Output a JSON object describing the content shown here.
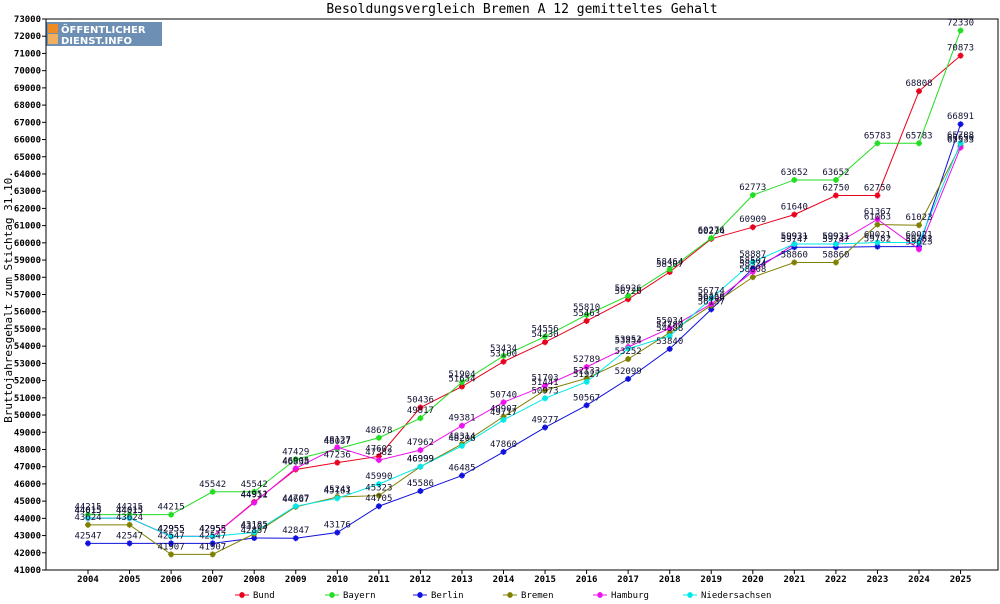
{
  "chart_data": {
    "type": "line",
    "title": "Besoldungsvergleich Bremen A 12 gemitteltes Gehalt",
    "ylabel": "Bruttojahresgehalt zum Stichtag 31.10.",
    "xlabel": "",
    "ylim": [
      41000,
      73000
    ],
    "ytick_step": 1000,
    "grid": false,
    "legend_position": "bottom",
    "logo": {
      "line1": "ÖFFENTLICHER",
      "line2": "DIENST.INFO"
    },
    "categories": [
      "2004",
      "2005",
      "2006",
      "2007",
      "2008",
      "2009",
      "2010",
      "2011",
      "2012",
      "2013",
      "2014",
      "2015",
      "2016",
      "2017",
      "2018",
      "2019",
      "2020",
      "2021",
      "2022",
      "2023",
      "2024",
      "2025"
    ],
    "series": [
      {
        "name": "Bund",
        "color": "#e8001c",
        "values": [
          44015,
          44015,
          42955,
          42955,
          44951,
          46838,
          47236,
          47602,
          50436,
          51654,
          53100,
          54230,
          55463,
          56726,
          58307,
          60234,
          60909,
          61640,
          62750,
          62750,
          68808,
          70873
        ]
      },
      {
        "name": "Bayern",
        "color": "#22dd22",
        "values": [
          44215,
          44215,
          44215,
          45542,
          45542,
          47429,
          48037,
          48678,
          49817,
          51904,
          53434,
          54556,
          55810,
          56926,
          58464,
          60276,
          62773,
          63652,
          63652,
          65783,
          65783,
          72330
        ]
      },
      {
        "name": "Berlin",
        "color": "#1010dd",
        "values": [
          42547,
          42547,
          42547,
          42547,
          42857,
          42847,
          43176,
          44705,
          45586,
          46485,
          47860,
          49277,
          50567,
          52099,
          53840,
          56137,
          58507,
          59747,
          59747,
          59782,
          59782,
          66891
        ]
      },
      {
        "name": "Bremen",
        "color": "#808000",
        "values": [
          43624,
          43624,
          41907,
          41907,
          43103,
          44667,
          45243,
          45323,
          46999,
          48314,
          49907,
          51441,
          52133,
          53252,
          54780,
          56366,
          58008,
          58860,
          58860,
          61063,
          61023,
          65650
        ]
      },
      {
        "name": "Hamburg",
        "color": "#ee10ee",
        "values": [
          44015,
          44015,
          42955,
          42955,
          44912,
          46905,
          48127,
          47382,
          47962,
          49381,
          50740,
          51703,
          52789,
          53952,
          55034,
          56450,
          58324,
          59931,
          59931,
          61367,
          59623,
          65533
        ]
      },
      {
        "name": "Niedersachsen",
        "color": "#00e8e8",
        "values": [
          44015,
          44015,
          42955,
          42955,
          43185,
          44707,
          45161,
          45990,
          46999,
          48208,
          49717,
          50973,
          51927,
          53854,
          54588,
          56774,
          58887,
          59931,
          59931,
          60021,
          60021,
          65788
        ]
      }
    ]
  }
}
